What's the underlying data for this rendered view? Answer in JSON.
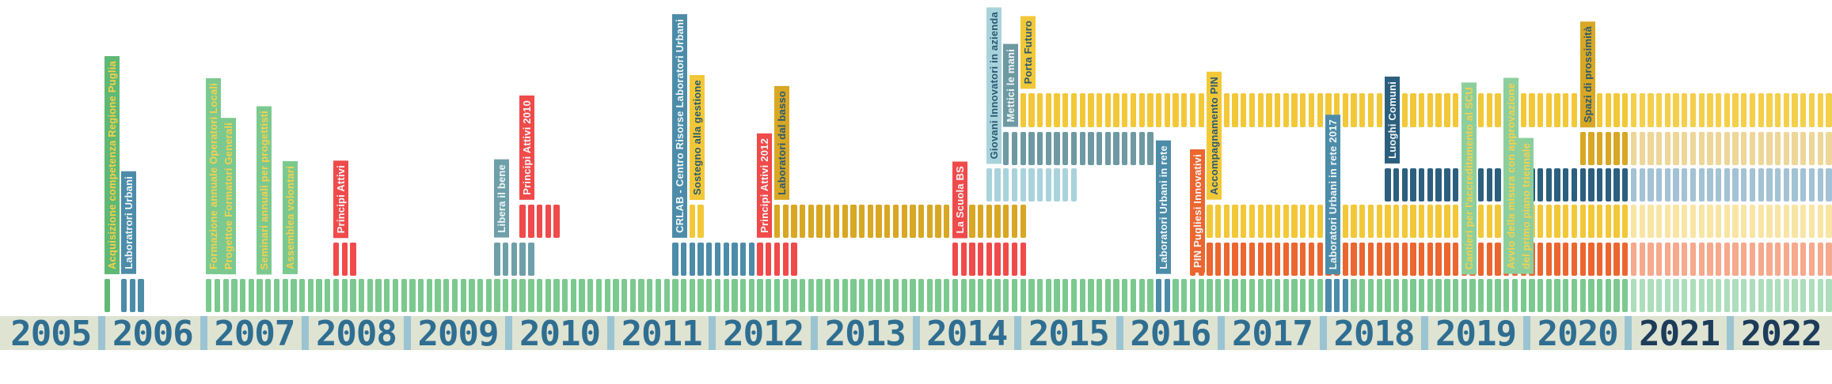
{
  "palette": {
    "green": "#7CC98F",
    "greenDark": "#5FB873",
    "greenLight": "#8CCF9D",
    "greenFaded": "#ACDEBB",
    "blue": "#4C8CA9",
    "blueFaded": "#A3C2D4",
    "red": "#F04A4B",
    "teal": "#6FA0A9",
    "slate": "#6E99A3",
    "lightTeal": "#A9D3DC",
    "gold": "#D8A724",
    "goldFaded": "#EDD697",
    "yellow": "#F2C838",
    "yellowFaded": "#F4CF4B",
    "yellowPale": "#F8E5A4",
    "orange": "#EC6630",
    "orangeFaded": "#F6A98C",
    "navy": "#2C5F7E",
    "white": "#F2F7F8",
    "yellowText": "#F5D14F",
    "navyText": "#2A5A70"
  },
  "axis": {
    "years": [
      "2005",
      "2006",
      "2007",
      "2008",
      "2009",
      "2010",
      "2011",
      "2012",
      "2013",
      "2014",
      "2015",
      "2016",
      "2017",
      "2018",
      "2019",
      "2020",
      "2021",
      "2022"
    ],
    "strip_color": "#DFE3D2",
    "separator_color": "#9BC4D2",
    "year_color": "#2F6E91",
    "recent_year_color": "#1D3C59",
    "recent_years": [
      "2021",
      "2022"
    ]
  },
  "chart_data": {
    "type": "gantt-timeline",
    "unit": "month",
    "x_range": [
      "2005-01",
      "2022-12"
    ],
    "rows": 6,
    "runs": [
      {
        "row": 6,
        "color": "greenDark",
        "from": "2006-01",
        "to": "2006-01"
      },
      {
        "row": 6,
        "color": "blue",
        "from": "2006-03",
        "to": "2006-05"
      },
      {
        "row": 6,
        "color": "green",
        "from": "2007-01",
        "to": "2020-12"
      },
      {
        "row": 6,
        "color": "blue",
        "from": "2016-05",
        "to": "2016-06"
      },
      {
        "row": 6,
        "color": "blue",
        "from": "2018-01",
        "to": "2018-03"
      },
      {
        "row": 6,
        "color": "greenFaded",
        "from": "2021-01",
        "to": "2022-12"
      },
      {
        "row": 5,
        "color": "red",
        "from": "2008-04",
        "to": "2008-06"
      },
      {
        "row": 5,
        "color": "teal",
        "from": "2009-11",
        "to": "2010-03"
      },
      {
        "row": 5,
        "color": "blue",
        "from": "2011-08",
        "to": "2012-05"
      },
      {
        "row": 5,
        "color": "red",
        "from": "2012-06",
        "to": "2012-10"
      },
      {
        "row": 5,
        "color": "red",
        "from": "2014-05",
        "to": "2015-01"
      },
      {
        "row": 5,
        "color": "orange",
        "from": "2016-09",
        "to": "2020-12"
      },
      {
        "row": 5,
        "color": "orangeFaded",
        "from": "2021-01",
        "to": "2022-12"
      },
      {
        "row": 4,
        "color": "red",
        "from": "2010-02",
        "to": "2010-06"
      },
      {
        "row": 4,
        "color": "yellow",
        "from": "2011-10",
        "to": "2011-11"
      },
      {
        "row": 4,
        "color": "gold",
        "from": "2012-08",
        "to": "2015-01"
      },
      {
        "row": 4,
        "color": "yellow",
        "from": "2016-10",
        "to": "2020-12"
      },
      {
        "row": 4,
        "color": "yellowPale",
        "from": "2021-01",
        "to": "2022-12"
      },
      {
        "row": 3,
        "color": "lightTeal",
        "from": "2014-09",
        "to": "2015-07"
      },
      {
        "row": 3,
        "color": "navy",
        "from": "2018-08",
        "to": "2020-12"
      },
      {
        "row": 3,
        "color": "blueFaded",
        "from": "2021-01",
        "to": "2022-12"
      },
      {
        "row": 2,
        "color": "slate",
        "from": "2014-11",
        "to": "2016-04"
      },
      {
        "row": 2,
        "color": "gold",
        "from": "2020-07",
        "to": "2020-12"
      },
      {
        "row": 2,
        "color": "goldFaded",
        "from": "2021-01",
        "to": "2022-12"
      },
      {
        "row": 1,
        "color": "yellow",
        "from": "2015-01",
        "to": "2020-12"
      },
      {
        "row": 1,
        "color": "yellowFaded",
        "from": "2021-01",
        "to": "2022-12"
      }
    ],
    "annotations": [
      {
        "id": "acquisizione-competenza-regione-puglia",
        "lines": [
          "Acquisizione competenza Regione Puglia"
        ],
        "row": 6,
        "anchor": "2006-01",
        "bg": "greenDark",
        "fg": "yellowText"
      },
      {
        "id": "laboratrori-urbani",
        "lines": [
          "Laboratrori Urbani"
        ],
        "row": 6,
        "anchor": "2006-03",
        "bg": "blue",
        "fg": "white"
      },
      {
        "id": "formazione-annuale-operatori-locali",
        "lines": [
          "Formazione annuale Operatori Locali",
          "Progettoe Formatori Generali"
        ],
        "row": 6,
        "anchor": "2007-01",
        "bg": "green",
        "fg": "yellowText"
      },
      {
        "id": "seminari-annuali-per-progettisti",
        "lines": [
          "Seminari annuali per progettisti"
        ],
        "row": 6,
        "anchor": "2007-07",
        "bg": "green",
        "fg": "yellowText"
      },
      {
        "id": "assemblea-volontari",
        "lines": [
          "Assemblea volontari"
        ],
        "row": 6,
        "anchor": "2007-10",
        "bg": "green",
        "fg": "yellowText"
      },
      {
        "id": "principi-attivi",
        "lines": [
          "Principi Attivi"
        ],
        "row": 5,
        "anchor": "2008-04",
        "bg": "red",
        "fg": "white"
      },
      {
        "id": "libera-il-bene",
        "lines": [
          "Libera il bene"
        ],
        "row": 5,
        "anchor": "2009-11",
        "bg": "teal",
        "fg": "white"
      },
      {
        "id": "principi-attivi-2010",
        "lines": [
          "Principi Attivi 2010"
        ],
        "row": 4,
        "anchor": "2010-02",
        "bg": "red",
        "fg": "white"
      },
      {
        "id": "crlab-centro-risorse-laboratori-urbani",
        "lines": [
          "CRLAB - Centro Risorse Laboratori Urbani"
        ],
        "row": 5,
        "anchor": "2011-08",
        "bg": "blue",
        "fg": "white"
      },
      {
        "id": "sostegno-alla-gestione",
        "lines": [
          "Sostegno alla gestione"
        ],
        "row": 4,
        "anchor": "2011-10",
        "bg": "yellow",
        "fg": "navyText"
      },
      {
        "id": "principi-attivi-2012",
        "lines": [
          "Principi Attivi 2012"
        ],
        "row": 5,
        "anchor": "2012-06",
        "bg": "red",
        "fg": "white"
      },
      {
        "id": "laboratori-dal-basso",
        "lines": [
          "Laboratori dal basso"
        ],
        "row": 4,
        "anchor": "2012-08",
        "bg": "gold",
        "fg": "navyText"
      },
      {
        "id": "la-scuola-bs",
        "lines": [
          "La Scuola BS"
        ],
        "row": 5,
        "anchor": "2014-05",
        "bg": "red",
        "fg": "white"
      },
      {
        "id": "giovani-innovatori-in-azienda",
        "lines": [
          "Giovani Innovatori in azienda"
        ],
        "row": 3,
        "anchor": "2014-09",
        "bg": "lightTeal",
        "fg": "navyText"
      },
      {
        "id": "mettici-le-mani",
        "lines": [
          "Mettici le mani"
        ],
        "row": 2,
        "anchor": "2014-11",
        "bg": "slate",
        "fg": "white"
      },
      {
        "id": "porta-futuro",
        "lines": [
          "Porta Futuro"
        ],
        "row": 1,
        "anchor": "2015-01",
        "bg": "yellow",
        "fg": "navyText"
      },
      {
        "id": "laboratori-urbani-in-rete",
        "lines": [
          "Laboratori Urbani in rete"
        ],
        "row": 6,
        "anchor": "2016-05",
        "bg": "blue",
        "fg": "white"
      },
      {
        "id": "pin-pugliesi-innovativi",
        "lines": [
          "PIN Pugliesi Innovativi"
        ],
        "row": 6,
        "anchor": "2016-09",
        "bg": "orange",
        "fg": "white",
        "bottom_override": 345
      },
      {
        "id": "accompagnamento-pin",
        "lines": [
          "Accompagnamento PIN"
        ],
        "row": 4,
        "anchor": "2016-11",
        "bg": "yellow",
        "fg": "navyText"
      },
      {
        "id": "laboratori-urbani-in-rete-2017",
        "lines": [
          "Laboratori Urbani in rete 2017"
        ],
        "row": 6,
        "anchor": "2018-01",
        "bg": "blue",
        "fg": "white"
      },
      {
        "id": "luoghi-comuni",
        "lines": [
          "Luoghi Comuni"
        ],
        "row": 3,
        "anchor": "2018-08",
        "bg": "navy",
        "fg": "white"
      },
      {
        "id": "cantieri-per-accreditamento-al-scu",
        "lines": [
          "Cantieri per l'accreditamento al SCU"
        ],
        "row": 6,
        "anchor": "2019-05",
        "bg": "greenLight",
        "fg": "yellowText"
      },
      {
        "id": "avvio-della-misura",
        "lines": [
          "Avvio della misura con approvazione",
          "del primo piano triennale"
        ],
        "row": 6,
        "anchor": "2019-10",
        "bg": "greenLight",
        "fg": "yellowText"
      },
      {
        "id": "spazi-di-prossimita",
        "lines": [
          "Spazi di prossimità"
        ],
        "row": 2,
        "anchor": "2020-07",
        "bg": "gold",
        "fg": "navyText"
      }
    ]
  }
}
